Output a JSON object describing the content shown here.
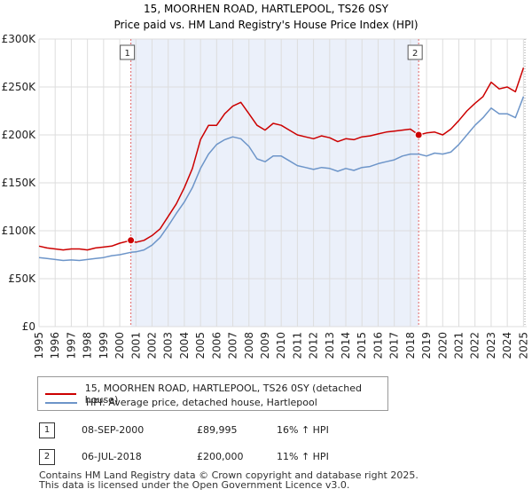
{
  "chart_data": {
    "type": "line",
    "title": "15, MOORHEN ROAD, HARTLEPOOL, TS26 0SY",
    "subtitle": "Price paid vs. HM Land Registry's House Price Index (HPI)",
    "x_range": [
      1995,
      2025.2
    ],
    "y_range": [
      0,
      300000
    ],
    "y_ticks": [
      0,
      50000,
      100000,
      150000,
      200000,
      250000,
      300000
    ],
    "y_tick_labels": [
      "£0",
      "£50K",
      "£100K",
      "£150K",
      "£200K",
      "£250K",
      "£300K"
    ],
    "x_ticks": [
      1995,
      1996,
      1997,
      1998,
      1999,
      2000,
      2001,
      2002,
      2003,
      2004,
      2005,
      2006,
      2007,
      2008,
      2009,
      2010,
      2011,
      2012,
      2013,
      2014,
      2015,
      2016,
      2017,
      2018,
      2019,
      2020,
      2021,
      2022,
      2023,
      2024,
      2025
    ],
    "x_tick_labels": [
      "1995",
      "1996",
      "1997",
      "1998",
      "1999",
      "2000",
      "2001",
      "2002",
      "2003",
      "2004",
      "2005",
      "2006",
      "2007",
      "2008",
      "2009",
      "2010",
      "2011",
      "2012",
      "2013",
      "2014",
      "2015",
      "2016",
      "2017",
      "2018",
      "2019",
      "2020",
      "2021",
      "2022",
      "2023",
      "2024",
      "2025"
    ],
    "grid": true,
    "highlight_span": [
      2000.69,
      2018.51
    ],
    "series": [
      {
        "name": "15, MOORHEN ROAD, HARTLEPOOL, TS26 0SY (detached house)",
        "color": "#cc0000",
        "x": [
          1995.0,
          1995.5,
          1996.0,
          1996.5,
          1997.0,
          1997.5,
          1998.0,
          1998.5,
          1999.0,
          1999.5,
          2000.0,
          2000.69,
          2001.0,
          2001.5,
          2002.0,
          2002.5,
          2003.0,
          2003.5,
          2004.0,
          2004.5,
          2005.0,
          2005.5,
          2006.0,
          2006.5,
          2007.0,
          2007.5,
          2008.0,
          2008.5,
          2009.0,
          2009.5,
          2010.0,
          2010.5,
          2011.0,
          2011.5,
          2012.0,
          2012.5,
          2013.0,
          2013.5,
          2014.0,
          2014.5,
          2015.0,
          2015.5,
          2016.0,
          2016.5,
          2017.0,
          2017.5,
          2018.0,
          2018.51,
          2019.0,
          2019.5,
          2020.0,
          2020.5,
          2021.0,
          2021.5,
          2022.0,
          2022.5,
          2023.0,
          2023.5,
          2024.0,
          2024.5,
          2025.0
        ],
        "values": [
          84000,
          82000,
          81000,
          80000,
          81000,
          81000,
          80000,
          82000,
          83000,
          84000,
          87000,
          89995,
          88000,
          90000,
          95000,
          102000,
          115000,
          128000,
          145000,
          165000,
          195000,
          210000,
          210000,
          222000,
          230000,
          234000,
          222000,
          210000,
          205000,
          212000,
          210000,
          205000,
          200000,
          198000,
          196000,
          199000,
          197000,
          193000,
          196000,
          195000,
          198000,
          199000,
          201000,
          203000,
          204000,
          205000,
          206000,
          200000,
          202000,
          203000,
          200000,
          206000,
          215000,
          225000,
          233000,
          240000,
          255000,
          248000,
          250000,
          245000,
          270000
        ]
      },
      {
        "name": "HPI: Average price, detached house, Hartlepool",
        "color": "#6d95c9",
        "x": [
          1995.0,
          1995.5,
          1996.0,
          1996.5,
          1997.0,
          1997.5,
          1998.0,
          1998.5,
          1999.0,
          1999.5,
          2000.0,
          2000.69,
          2001.0,
          2001.5,
          2002.0,
          2002.5,
          2003.0,
          2003.5,
          2004.0,
          2004.5,
          2005.0,
          2005.5,
          2006.0,
          2006.5,
          2007.0,
          2007.5,
          2008.0,
          2008.5,
          2009.0,
          2009.5,
          2010.0,
          2010.5,
          2011.0,
          2011.5,
          2012.0,
          2012.5,
          2013.0,
          2013.5,
          2014.0,
          2014.5,
          2015.0,
          2015.5,
          2016.0,
          2016.5,
          2017.0,
          2017.5,
          2018.0,
          2018.51,
          2019.0,
          2019.5,
          2020.0,
          2020.5,
          2021.0,
          2021.5,
          2022.0,
          2022.5,
          2023.0,
          2023.5,
          2024.0,
          2024.5,
          2025.0
        ],
        "values": [
          72000,
          71000,
          70000,
          69000,
          69500,
          69000,
          70000,
          71000,
          72000,
          74000,
          75000,
          77500,
          78000,
          80000,
          85000,
          93000,
          105000,
          118000,
          130000,
          145000,
          165000,
          180000,
          190000,
          195000,
          198000,
          196000,
          188000,
          175000,
          172000,
          178000,
          178000,
          173000,
          168000,
          166000,
          164000,
          166000,
          165000,
          162000,
          165000,
          163000,
          166000,
          167000,
          170000,
          172000,
          174000,
          178000,
          180000,
          180000,
          178000,
          181000,
          180000,
          182000,
          190000,
          200000,
          210000,
          218000,
          228000,
          222000,
          222000,
          218000,
          240000
        ]
      }
    ],
    "markers": [
      {
        "label": "1",
        "x": 2000.69,
        "y": 89995
      },
      {
        "label": "2",
        "x": 2018.51,
        "y": 200000
      }
    ]
  },
  "legend": {
    "property_label": "15, MOORHEN ROAD, HARTLEPOOL, TS26 0SY (detached house)",
    "hpi_label": "HPI: Average price, detached house, Hartlepool",
    "property_color": "#cc0000",
    "hpi_color": "#6d95c9"
  },
  "sales": [
    {
      "num": "1",
      "date": "08-SEP-2000",
      "price": "£89,995",
      "hpi": "16% ↑ HPI"
    },
    {
      "num": "2",
      "date": "06-JUL-2018",
      "price": "£200,000",
      "hpi": "11% ↑ HPI"
    }
  ],
  "footer": {
    "line1": "Contains HM Land Registry data © Crown copyright and database right 2025.",
    "line2": "This data is licensed under the Open Government Licence v3.0."
  }
}
